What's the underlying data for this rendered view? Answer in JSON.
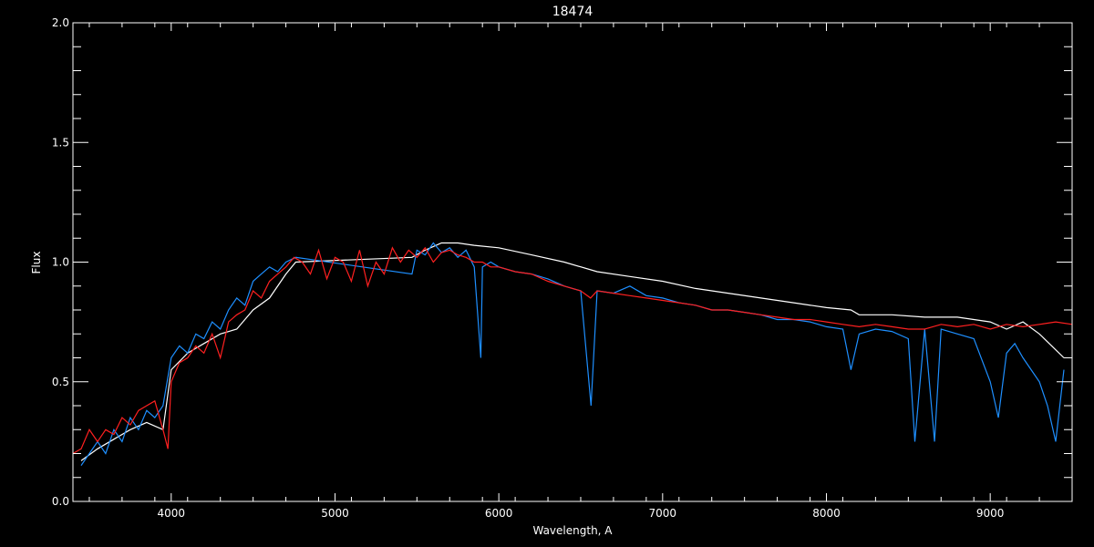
{
  "chart_data": {
    "type": "line",
    "title": "18474",
    "xlabel": "Wavelength, A",
    "ylabel": "Flux",
    "xlim": [
      3400,
      9500
    ],
    "ylim": [
      0,
      2
    ],
    "x_ticks": [
      4000,
      5000,
      6000,
      7000,
      8000,
      9000
    ],
    "x_tick_labels": [
      "4000",
      "5000",
      "6000",
      "7000",
      "8000",
      "9000"
    ],
    "y_ticks": [
      0,
      0.5,
      1,
      1.5,
      2
    ],
    "y_tick_labels": [
      "0.0",
      "0.5",
      "1.0",
      "1.5",
      "2.0"
    ],
    "grid": false,
    "background": "#000000",
    "axis_color": "#ffffff",
    "series": [
      {
        "color": "#ffffff",
        "x": [
          3450,
          3550,
          3650,
          3750,
          3850,
          3950,
          4000,
          4100,
          4200,
          4300,
          4400,
          4500,
          4600,
          4700,
          4760,
          5470,
          5550,
          5650,
          5750,
          5850,
          6000,
          6200,
          6400,
          6600,
          6800,
          7000,
          7200,
          7400,
          7600,
          7800,
          8000,
          8150,
          8200,
          8400,
          8600,
          8800,
          9000,
          9100,
          9200,
          9300,
          9450
        ],
        "y": [
          0.17,
          0.22,
          0.26,
          0.3,
          0.33,
          0.3,
          0.55,
          0.62,
          0.66,
          0.7,
          0.72,
          0.8,
          0.85,
          0.95,
          1.0,
          1.02,
          1.05,
          1.08,
          1.08,
          1.07,
          1.06,
          1.03,
          1.0,
          0.96,
          0.94,
          0.92,
          0.89,
          0.87,
          0.85,
          0.83,
          0.81,
          0.8,
          0.78,
          0.78,
          0.77,
          0.77,
          0.75,
          0.72,
          0.75,
          0.7,
          0.6
        ]
      },
      {
        "color": "#1e8fff",
        "x": [
          3450,
          3500,
          3550,
          3600,
          3650,
          3700,
          3750,
          3800,
          3850,
          3900,
          3950,
          4000,
          4050,
          4100,
          4150,
          4200,
          4250,
          4300,
          4350,
          4400,
          4450,
          4500,
          4550,
          4600,
          4650,
          4700,
          4760,
          5470,
          5500,
          5550,
          5600,
          5650,
          5700,
          5750,
          5800,
          5850,
          5890,
          5900,
          5950,
          6000,
          6100,
          6200,
          6300,
          6400,
          6500,
          6563,
          6600,
          6700,
          6800,
          6900,
          7000,
          7100,
          7200,
          7300,
          7400,
          7500,
          7600,
          7700,
          7800,
          7900,
          8000,
          8100,
          8150,
          8200,
          8300,
          8400,
          8500,
          8540,
          8600,
          8660,
          8700,
          8800,
          8900,
          9000,
          9050,
          9100,
          9150,
          9200,
          9300,
          9350,
          9400,
          9450
        ],
        "y": [
          0.15,
          0.2,
          0.25,
          0.2,
          0.3,
          0.25,
          0.35,
          0.3,
          0.38,
          0.35,
          0.4,
          0.6,
          0.65,
          0.62,
          0.7,
          0.68,
          0.75,
          0.72,
          0.8,
          0.85,
          0.82,
          0.92,
          0.95,
          0.98,
          0.96,
          1.0,
          1.02,
          0.95,
          1.05,
          1.03,
          1.08,
          1.04,
          1.06,
          1.02,
          1.05,
          0.98,
          0.6,
          0.98,
          1.0,
          0.98,
          0.96,
          0.95,
          0.93,
          0.9,
          0.88,
          0.4,
          0.88,
          0.87,
          0.9,
          0.86,
          0.85,
          0.83,
          0.82,
          0.8,
          0.8,
          0.79,
          0.78,
          0.76,
          0.76,
          0.75,
          0.73,
          0.72,
          0.55,
          0.7,
          0.72,
          0.71,
          0.68,
          0.25,
          0.72,
          0.25,
          0.72,
          0.7,
          0.68,
          0.5,
          0.35,
          0.62,
          0.66,
          0.6,
          0.5,
          0.4,
          0.25,
          0.55
        ]
      },
      {
        "color": "#ff2020",
        "x": [
          3400,
          3450,
          3500,
          3550,
          3600,
          3650,
          3700,
          3750,
          3800,
          3850,
          3900,
          3950,
          3980,
          4000,
          4050,
          4100,
          4150,
          4200,
          4250,
          4300,
          4350,
          4400,
          4450,
          4500,
          4550,
          4600,
          4650,
          4700,
          4750,
          4800,
          4850,
          4900,
          4950,
          5000,
          5050,
          5100,
          5150,
          5200,
          5250,
          5300,
          5350,
          5400,
          5450,
          5500,
          5550,
          5600,
          5650,
          5700,
          5750,
          5800,
          5850,
          5900,
          5950,
          6000,
          6100,
          6200,
          6300,
          6400,
          6500,
          6560,
          6600,
          6700,
          6800,
          6900,
          7000,
          7100,
          7200,
          7300,
          7400,
          7500,
          7600,
          7700,
          7800,
          7900,
          8000,
          8100,
          8200,
          8300,
          8400,
          8500,
          8600,
          8700,
          8800,
          8900,
          9000,
          9100,
          9200,
          9300,
          9400,
          9500
        ],
        "y": [
          0.2,
          0.22,
          0.3,
          0.25,
          0.3,
          0.28,
          0.35,
          0.32,
          0.38,
          0.4,
          0.42,
          0.3,
          0.22,
          0.5,
          0.58,
          0.6,
          0.65,
          0.62,
          0.7,
          0.6,
          0.75,
          0.78,
          0.8,
          0.88,
          0.85,
          0.92,
          0.95,
          0.98,
          1.02,
          1.0,
          0.95,
          1.05,
          0.93,
          1.02,
          1.0,
          0.92,
          1.05,
          0.9,
          1.0,
          0.95,
          1.06,
          1.0,
          1.05,
          1.02,
          1.06,
          1.0,
          1.04,
          1.05,
          1.03,
          1.02,
          1.0,
          1.0,
          0.98,
          0.98,
          0.96,
          0.95,
          0.92,
          0.9,
          0.88,
          0.85,
          0.88,
          0.87,
          0.86,
          0.85,
          0.84,
          0.83,
          0.82,
          0.8,
          0.8,
          0.79,
          0.78,
          0.77,
          0.76,
          0.76,
          0.75,
          0.74,
          0.73,
          0.74,
          0.73,
          0.72,
          0.72,
          0.74,
          0.73,
          0.74,
          0.72,
          0.74,
          0.73,
          0.74,
          0.75,
          0.74
        ]
      }
    ]
  }
}
